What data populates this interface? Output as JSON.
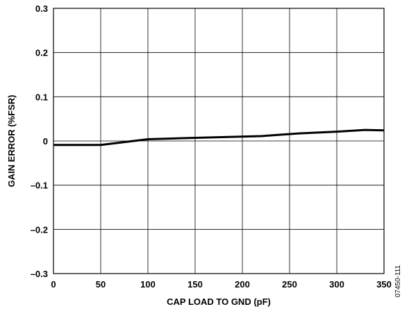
{
  "chart_data": {
    "type": "line",
    "title": "",
    "xlabel": "CAP LOAD TO GND (pF)",
    "ylabel": "GAIN ERROR (%FSR)",
    "xlim": [
      0,
      350
    ],
    "ylim": [
      -0.3,
      0.3
    ],
    "x_ticks": [
      0,
      50,
      100,
      150,
      200,
      250,
      300,
      350
    ],
    "x_tick_labels": [
      "0",
      "50",
      "100",
      "150",
      "200",
      "250",
      "300",
      "350"
    ],
    "y_ticks": [
      0.3,
      0.2,
      0.1,
      0,
      -0.1,
      -0.2,
      -0.3
    ],
    "y_tick_labels": [
      "0.3",
      "0.2",
      "0.1",
      "0",
      "–0.1",
      "–0.2",
      "–0.3"
    ],
    "grid": true,
    "legend": "none",
    "series": [
      {
        "x": [
          0,
          50,
          100,
          150,
          220,
          260,
          300,
          330,
          350
        ],
        "values": [
          -0.009,
          -0.009,
          0.004,
          0.007,
          0.011,
          0.017,
          0.021,
          0.025,
          0.024
        ],
        "color": "#000000"
      }
    ],
    "annotation": "07450-111"
  }
}
